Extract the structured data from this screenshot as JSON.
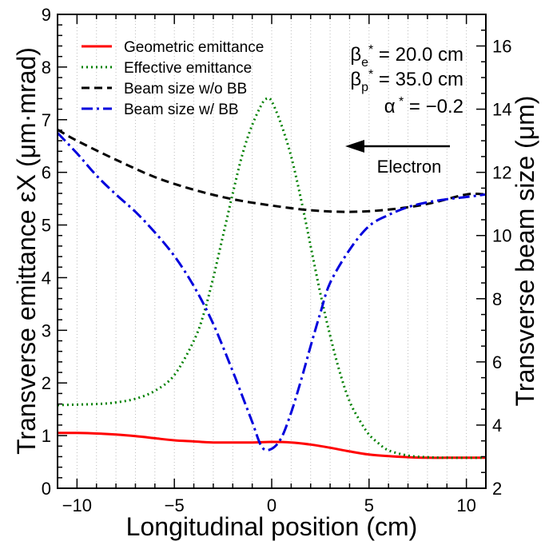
{
  "chart_data": {
    "type": "line",
    "title": "",
    "xlabel": "Longitudinal position (cm)",
    "ylabel_left": "Transverse emittance εX (μm·mrad)",
    "ylabel_right": "Transverse beam size (μm)",
    "xlim": [
      -11,
      11
    ],
    "ylim_left": [
      0,
      9
    ],
    "ylim_right": [
      2,
      17
    ],
    "x_ticks": [
      -10,
      -5,
      0,
      5,
      10
    ],
    "x_tick_labels": [
      "−10",
      "−5",
      "0",
      "5",
      "10"
    ],
    "y_left_ticks": [
      0,
      1,
      2,
      3,
      4,
      5,
      6,
      7,
      8,
      9
    ],
    "y_left_tick_labels": [
      "0",
      "1",
      "2",
      "3",
      "4",
      "5",
      "6",
      "7",
      "8",
      "9"
    ],
    "y_right_ticks": [
      2,
      4,
      6,
      8,
      10,
      12,
      14,
      16
    ],
    "y_right_tick_labels": [
      "2",
      "4",
      "6",
      "8",
      "10",
      "12",
      "14",
      "16"
    ],
    "vertical_grid": true,
    "legend_position": "top-left",
    "series": [
      {
        "name": "Geometric emittance",
        "axis": "left",
        "color": "#ff0000",
        "dash": "solid",
        "x": [
          -11,
          -10,
          -9,
          -8,
          -7,
          -6,
          -5,
          -4,
          -3,
          -2,
          -1,
          0,
          1,
          2,
          3,
          4,
          5,
          6,
          7,
          8,
          9,
          10,
          11
        ],
        "y": [
          1.05,
          1.05,
          1.04,
          1.02,
          0.99,
          0.95,
          0.91,
          0.89,
          0.87,
          0.87,
          0.87,
          0.88,
          0.87,
          0.83,
          0.77,
          0.7,
          0.64,
          0.61,
          0.59,
          0.58,
          0.58,
          0.58,
          0.58
        ]
      },
      {
        "name": "Effective emittance",
        "axis": "left",
        "color": "#008000",
        "dash": "dotted",
        "x": [
          -11,
          -9,
          -8,
          -7,
          -6,
          -5,
          -4,
          -3.5,
          -3,
          -2.5,
          -2,
          -1.5,
          -1,
          -0.5,
          -0.25,
          0,
          0.5,
          1,
          1.5,
          2,
          2.5,
          3,
          3.5,
          4,
          4.5,
          5,
          5.5,
          6,
          7,
          8,
          9,
          11
        ],
        "y": [
          1.58,
          1.6,
          1.63,
          1.7,
          1.85,
          2.15,
          2.8,
          3.3,
          4.0,
          4.8,
          5.6,
          6.35,
          6.9,
          7.3,
          7.4,
          7.35,
          6.9,
          6.3,
          5.5,
          4.6,
          3.7,
          2.9,
          2.2,
          1.65,
          1.3,
          1.02,
          0.85,
          0.72,
          0.62,
          0.59,
          0.58,
          0.58
        ]
      },
      {
        "name": "Beam size w/o BB",
        "axis": "right",
        "color": "#000000",
        "dash": "dashed",
        "x": [
          -11,
          -10,
          -8,
          -6,
          -4,
          -2,
          0,
          2,
          4,
          6,
          8,
          10,
          11
        ],
        "y": [
          13.35,
          13.0,
          12.4,
          11.85,
          11.45,
          11.15,
          10.95,
          10.8,
          10.75,
          10.82,
          11.0,
          11.3,
          11.3
        ]
      },
      {
        "name": "Beam size w/ BB",
        "axis": "right",
        "color": "#0000dd",
        "dash": "dashdot",
        "x": [
          -11,
          -10,
          -9,
          -8,
          -7,
          -6,
          -5,
          -4,
          -3,
          -2,
          -1.5,
          -1,
          -0.5,
          0,
          0.5,
          1,
          1.5,
          2,
          2.5,
          3,
          4,
          5,
          6,
          7,
          8,
          9,
          10,
          11
        ],
        "y": [
          13.25,
          12.6,
          11.9,
          11.3,
          10.75,
          10.1,
          9.35,
          8.4,
          7.2,
          5.7,
          4.9,
          4.1,
          3.3,
          3.25,
          3.6,
          4.4,
          5.4,
          6.5,
          7.55,
          8.5,
          9.55,
          10.3,
          10.65,
          10.9,
          11.05,
          11.15,
          11.22,
          11.3
        ]
      }
    ],
    "annotations": {
      "beta_e": {
        "symbol": "β",
        "sub": "e",
        "sup": "*",
        "value": " = 20.0 cm"
      },
      "beta_p": {
        "symbol": "β",
        "sub": "p",
        "sup": "*",
        "value": " = 35.0 cm"
      },
      "alpha": {
        "symbol": "α",
        "sup": " *",
        "value": " = −0.2"
      },
      "arrow_label": "Electron"
    }
  }
}
